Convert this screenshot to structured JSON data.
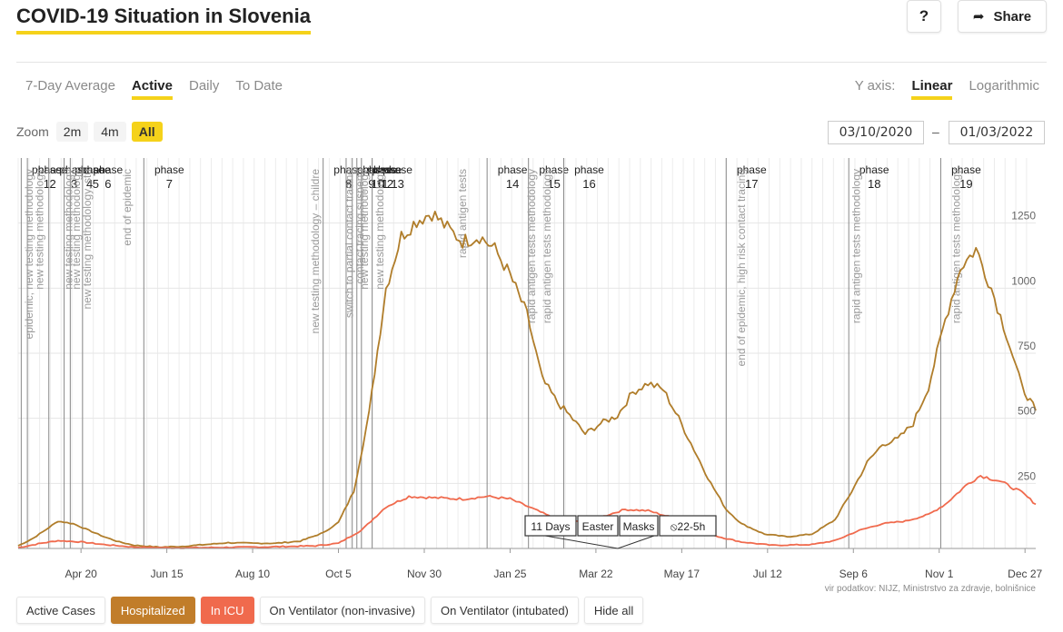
{
  "header": {
    "title": "COVID-19 Situation in Slovenia",
    "help_label": "?",
    "share_label": "Share"
  },
  "tabs": [
    {
      "label": "7-Day Average",
      "active": false
    },
    {
      "label": "Active",
      "active": true
    },
    {
      "label": "Daily",
      "active": false
    },
    {
      "label": "To Date",
      "active": false
    }
  ],
  "yaxis": {
    "label": "Y axis:",
    "linear": "Linear",
    "log": "Logarithmic",
    "selected": "Linear"
  },
  "zoom": {
    "label": "Zoom",
    "options": [
      "2m",
      "4m",
      "All"
    ],
    "selected": "All"
  },
  "date_range": {
    "from": "03/10/2020",
    "to": "01/03/2022",
    "dash": "–"
  },
  "legend": [
    {
      "label": "Active Cases",
      "state": "off"
    },
    {
      "label": "Hospitalized",
      "state": "on",
      "color": "#c17d2a"
    },
    {
      "label": "In ICU",
      "state": "on",
      "color": "#f06a4d"
    },
    {
      "label": "On Ventilator (non-invasive)",
      "state": "off"
    },
    {
      "label": "On Ventilator (intubated)",
      "state": "off"
    },
    {
      "label": "Hide all",
      "state": "action"
    }
  ],
  "source": "vir podatkov: NIJZ, Ministrstvo za zdravje, bolnišnice",
  "colors": {
    "accent": "#f5d21a",
    "hospitalized": "#b07d2a",
    "icu": "#f06a4d"
  },
  "chart_data": {
    "type": "line",
    "x_axis_type": "date",
    "x_range": [
      "2020-03-10",
      "2022-01-03"
    ],
    "ylim": [
      0,
      1500
    ],
    "y_ticks": [
      250,
      500,
      750,
      1000,
      1250
    ],
    "grid": true,
    "x_ticks": [
      {
        "date": "2020-04-20",
        "label": "Apr 20"
      },
      {
        "date": "2020-06-15",
        "label": "Jun 15"
      },
      {
        "date": "2020-08-10",
        "label": "Aug 10"
      },
      {
        "date": "2020-10-05",
        "label": "Oct 5"
      },
      {
        "date": "2020-11-30",
        "label": "Nov 30"
      },
      {
        "date": "2021-01-25",
        "label": "Jan 25"
      },
      {
        "date": "2021-03-22",
        "label": "Mar 22"
      },
      {
        "date": "2021-05-17",
        "label": "May 17"
      },
      {
        "date": "2021-07-12",
        "label": "Jul 12"
      },
      {
        "date": "2021-09-06",
        "label": "Sep 6"
      },
      {
        "date": "2021-11-01",
        "label": "Nov 1"
      },
      {
        "date": "2021-12-27",
        "label": "Dec 27"
      }
    ],
    "series": [
      {
        "name": "Hospitalized",
        "color": "#b07d2a",
        "points": [
          [
            "2020-03-10",
            10
          ],
          [
            "2020-03-20",
            40
          ],
          [
            "2020-03-30",
            80
          ],
          [
            "2020-04-05",
            105
          ],
          [
            "2020-04-15",
            95
          ],
          [
            "2020-04-25",
            70
          ],
          [
            "2020-05-05",
            45
          ],
          [
            "2020-05-15",
            25
          ],
          [
            "2020-05-25",
            12
          ],
          [
            "2020-06-10",
            5
          ],
          [
            "2020-06-25",
            8
          ],
          [
            "2020-07-10",
            15
          ],
          [
            "2020-07-25",
            22
          ],
          [
            "2020-08-10",
            20
          ],
          [
            "2020-08-25",
            20
          ],
          [
            "2020-09-10",
            28
          ],
          [
            "2020-09-25",
            60
          ],
          [
            "2020-10-05",
            100
          ],
          [
            "2020-10-15",
            220
          ],
          [
            "2020-10-25",
            520
          ],
          [
            "2020-11-05",
            1000
          ],
          [
            "2020-11-15",
            1200
          ],
          [
            "2020-11-25",
            1260
          ],
          [
            "2020-12-05",
            1290
          ],
          [
            "2020-12-15",
            1230
          ],
          [
            "2020-12-25",
            1180
          ],
          [
            "2021-01-05",
            1200
          ],
          [
            "2021-01-15",
            1150
          ],
          [
            "2021-01-25",
            1050
          ],
          [
            "2021-02-05",
            900
          ],
          [
            "2021-02-15",
            650
          ],
          [
            "2021-02-25",
            560
          ],
          [
            "2021-03-05",
            510
          ],
          [
            "2021-03-15",
            440
          ],
          [
            "2021-03-25",
            480
          ],
          [
            "2021-04-05",
            510
          ],
          [
            "2021-04-15",
            600
          ],
          [
            "2021-04-25",
            635
          ],
          [
            "2021-05-05",
            610
          ],
          [
            "2021-05-15",
            500
          ],
          [
            "2021-05-25",
            380
          ],
          [
            "2021-06-05",
            250
          ],
          [
            "2021-06-15",
            150
          ],
          [
            "2021-06-25",
            95
          ],
          [
            "2021-07-10",
            55
          ],
          [
            "2021-07-25",
            45
          ],
          [
            "2021-08-10",
            55
          ],
          [
            "2021-08-25",
            110
          ],
          [
            "2021-09-05",
            220
          ],
          [
            "2021-09-15",
            330
          ],
          [
            "2021-09-25",
            400
          ],
          [
            "2021-10-05",
            420
          ],
          [
            "2021-10-15",
            480
          ],
          [
            "2021-10-25",
            620
          ],
          [
            "2021-11-05",
            880
          ],
          [
            "2021-11-15",
            1080
          ],
          [
            "2021-11-25",
            1150
          ],
          [
            "2021-12-05",
            1000
          ],
          [
            "2021-12-15",
            820
          ],
          [
            "2021-12-25",
            620
          ],
          [
            "2022-01-03",
            530
          ]
        ]
      },
      {
        "name": "In ICU",
        "color": "#f06a4d",
        "points": [
          [
            "2020-03-10",
            3
          ],
          [
            "2020-03-25",
            20
          ],
          [
            "2020-04-05",
            30
          ],
          [
            "2020-04-20",
            25
          ],
          [
            "2020-05-05",
            15
          ],
          [
            "2020-05-25",
            5
          ],
          [
            "2020-06-20",
            2
          ],
          [
            "2020-07-20",
            4
          ],
          [
            "2020-08-20",
            6
          ],
          [
            "2020-09-20",
            10
          ],
          [
            "2020-10-05",
            20
          ],
          [
            "2020-10-20",
            70
          ],
          [
            "2020-11-05",
            160
          ],
          [
            "2020-11-20",
            200
          ],
          [
            "2020-12-05",
            195
          ],
          [
            "2020-12-25",
            190
          ],
          [
            "2021-01-10",
            200
          ],
          [
            "2021-01-25",
            190
          ],
          [
            "2021-02-10",
            150
          ],
          [
            "2021-02-25",
            110
          ],
          [
            "2021-03-10",
            105
          ],
          [
            "2021-03-25",
            120
          ],
          [
            "2021-04-10",
            150
          ],
          [
            "2021-04-25",
            145
          ],
          [
            "2021-05-10",
            120
          ],
          [
            "2021-05-25",
            80
          ],
          [
            "2021-06-10",
            45
          ],
          [
            "2021-06-25",
            25
          ],
          [
            "2021-07-15",
            12
          ],
          [
            "2021-08-10",
            15
          ],
          [
            "2021-08-25",
            30
          ],
          [
            "2021-09-10",
            70
          ],
          [
            "2021-09-25",
            95
          ],
          [
            "2021-10-10",
            105
          ],
          [
            "2021-10-25",
            130
          ],
          [
            "2021-11-05",
            170
          ],
          [
            "2021-11-20",
            250
          ],
          [
            "2021-11-28",
            280
          ],
          [
            "2021-12-10",
            260
          ],
          [
            "2021-12-25",
            215
          ],
          [
            "2022-01-03",
            170
          ]
        ]
      }
    ],
    "phases": [
      {
        "date": "2020-03-12",
        "label": "phase",
        "num": "1"
      },
      {
        "date": "2020-03-16",
        "label": "phase",
        "num": "2"
      },
      {
        "date": "2020-03-30",
        "label": "phase",
        "num": "3"
      },
      {
        "date": "2020-04-09",
        "label": "phase",
        "num": "4"
      },
      {
        "date": "2020-04-13",
        "label": "phase",
        "num": "5"
      },
      {
        "date": "2020-04-21",
        "label": "phase",
        "num": "6"
      },
      {
        "date": "2020-05-31",
        "label": "phase",
        "num": "7"
      },
      {
        "date": "2020-09-25",
        "label": "phase",
        "num": "8"
      },
      {
        "date": "2020-10-10",
        "label": "phase",
        "num": "9"
      },
      {
        "date": "2020-10-14",
        "label": "phase",
        "num": "10"
      },
      {
        "date": "2020-10-17",
        "label": "phase",
        "num": "11"
      },
      {
        "date": "2020-10-20",
        "label": "phase",
        "num": "12"
      },
      {
        "date": "2020-10-27",
        "label": "phase",
        "num": "13"
      },
      {
        "date": "2021-01-10",
        "label": "phase",
        "num": "14"
      },
      {
        "date": "2021-02-06",
        "label": "phase",
        "num": "15"
      },
      {
        "date": "2021-03-01",
        "label": "phase",
        "num": "16"
      },
      {
        "date": "2021-06-15",
        "label": "phase",
        "num": "17"
      },
      {
        "date": "2021-09-03",
        "label": "phase",
        "num": "18"
      },
      {
        "date": "2021-11-02",
        "label": "phase",
        "num": "19"
      }
    ],
    "annotations": [
      {
        "date": "2020-03-17",
        "text": "epidemic, new testing methodology"
      },
      {
        "date": "2020-03-24",
        "text": "new testing methodology"
      },
      {
        "date": "2020-04-12",
        "text": "new testing methodology"
      },
      {
        "date": "2020-04-17",
        "text": "new testing methodology"
      },
      {
        "date": "2020-04-24",
        "text": "new testing methodology, stu"
      },
      {
        "date": "2020-05-20",
        "text": "end of epidemic"
      },
      {
        "date": "2020-09-20",
        "text": "new testing methodology – childre"
      },
      {
        "date": "2020-10-12",
        "text": "switch to partial contact tracing"
      },
      {
        "date": "2020-10-19",
        "text": "contact tracing suspend"
      },
      {
        "date": "2020-10-22",
        "text": "new testing methodology"
      },
      {
        "date": "2020-11-01",
        "text": "new testing methodology"
      },
      {
        "date": "2020-12-25",
        "text": "rapid antigen tests"
      },
      {
        "date": "2021-02-08",
        "text": "rapid antigen tests methodology"
      },
      {
        "date": "2021-02-18",
        "text": "rapid antigen tests methodology"
      },
      {
        "date": "2021-06-25",
        "text": "end of epidemic, high risk contact tracing"
      },
      {
        "date": "2021-09-08",
        "text": "rapid antigen tests methodology"
      },
      {
        "date": "2021-11-12",
        "text": "rapid antigen tests methodology"
      }
    ],
    "callouts": [
      "11 Days",
      "Easter",
      "Masks",
      "22-5h"
    ]
  }
}
